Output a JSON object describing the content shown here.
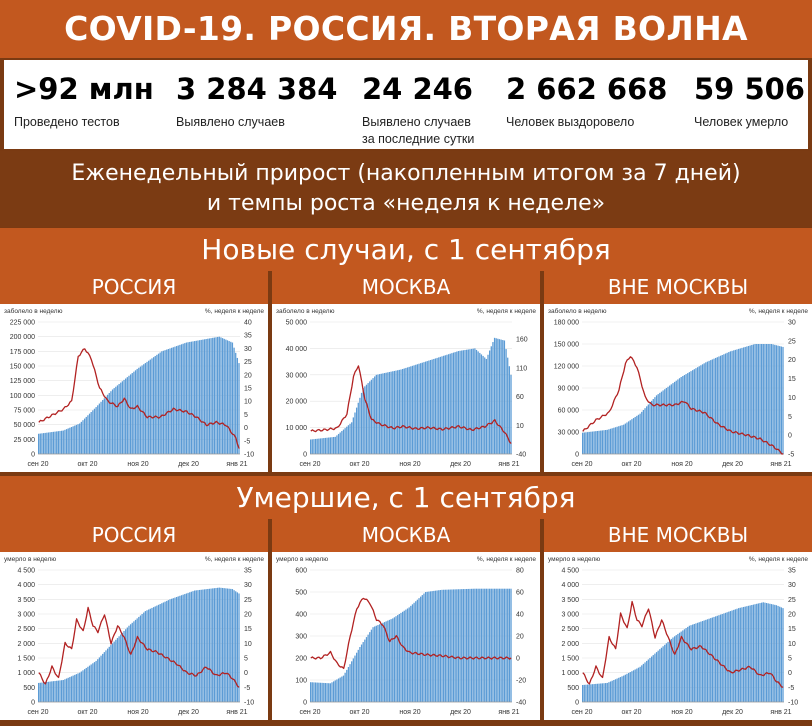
{
  "header": {
    "title": "COVID-19. РОССИЯ. ВТОРАЯ ВОЛНА"
  },
  "stats": [
    {
      "value": ">92 млн",
      "label": "Проведено тестов",
      "color": "#1f3f9b"
    },
    {
      "value": "3 284 384",
      "label": "Выявлено случаев",
      "color": "#ee5a4a"
    },
    {
      "value": "24 246",
      "label": "Выявлено случаев\nза последние сутки",
      "color": "#ee5a4a"
    },
    {
      "value": "2 662 668",
      "label": "Человек выздоровело",
      "color": "#1f3f9b"
    },
    {
      "value": "59 506",
      "label": "Человек умерло",
      "color": "#1f3f9b"
    }
  ],
  "subtitle": {
    "line1": "Еженедельный прирост (накопленным итогом за 7 дней)",
    "line2": "и темпы роста «неделя к неделе»"
  },
  "sections": {
    "cases": "Новые случаи, с 1 сентября",
    "deaths": "Умершие, с 1 сентября"
  },
  "colors": {
    "bars": "#5b9bd5",
    "line": "#b22222"
  },
  "chart_data": [
    {
      "type": "bar",
      "region": "РОССИЯ",
      "left_axis_label": "заболело в неделю",
      "right_axis_label": "%, неделя к неделе",
      "x_tick_labels": [
        "сен 20",
        "окт 20",
        "ноя 20",
        "дек 20",
        "янв 21"
      ],
      "ylim": [
        0,
        225000
      ],
      "y_ticks": [
        0,
        25000,
        50000,
        75000,
        100000,
        125000,
        150000,
        175000,
        200000,
        225000
      ],
      "y_tick_labels": [
        "0",
        "25 000",
        "50 000",
        "75 000",
        "100 000",
        "125 000",
        "150 000",
        "175 000",
        "200 000",
        "225 000"
      ],
      "y2lim": [
        -10,
        40
      ],
      "y2_ticks": [
        -10,
        -5,
        0,
        5,
        10,
        15,
        20,
        25,
        30,
        35,
        40
      ],
      "bar_anchors": [
        [
          0,
          34500
        ],
        [
          15,
          40000
        ],
        [
          25,
          52000
        ],
        [
          35,
          80000
        ],
        [
          45,
          110000
        ],
        [
          60,
          145000
        ],
        [
          75,
          175000
        ],
        [
          90,
          190000
        ],
        [
          100,
          195000
        ],
        [
          110,
          200000
        ],
        [
          118,
          190000
        ],
        [
          122,
          155000
        ]
      ],
      "line_anchors": [
        [
          0,
          2
        ],
        [
          6,
          4
        ],
        [
          15,
          7
        ],
        [
          20,
          10
        ],
        [
          24,
          27
        ],
        [
          28,
          30
        ],
        [
          32,
          26
        ],
        [
          37,
          15
        ],
        [
          42,
          10
        ],
        [
          48,
          8
        ],
        [
          52,
          11
        ],
        [
          56,
          7
        ],
        [
          60,
          8
        ],
        [
          66,
          4
        ],
        [
          74,
          4
        ],
        [
          82,
          7
        ],
        [
          90,
          6
        ],
        [
          96,
          4
        ],
        [
          102,
          1
        ],
        [
          108,
          2
        ],
        [
          114,
          1
        ],
        [
          120,
          -4
        ],
        [
          122,
          -8
        ]
      ]
    },
    {
      "type": "bar",
      "region": "МОСКВА",
      "left_axis_label": "заболело в неделю",
      "right_axis_label": "%, неделя к неделе",
      "x_tick_labels": [
        "сен 20",
        "окт 20",
        "ноя 20",
        "дек 20",
        "янв 21"
      ],
      "ylim": [
        0,
        50000
      ],
      "y_ticks": [
        0,
        10000,
        20000,
        30000,
        40000,
        50000
      ],
      "y_tick_labels": [
        "0",
        "10 000",
        "20 000",
        "30 000",
        "40 000",
        "50 000"
      ],
      "y2lim": [
        -40,
        190
      ],
      "y2_ticks": [
        -40,
        10,
        60,
        110,
        160
      ],
      "bar_anchors": [
        [
          0,
          5500
        ],
        [
          15,
          6500
        ],
        [
          25,
          12000
        ],
        [
          32,
          25000
        ],
        [
          40,
          30000
        ],
        [
          55,
          32000
        ],
        [
          70,
          35000
        ],
        [
          90,
          39000
        ],
        [
          100,
          40000
        ],
        [
          107,
          36000
        ],
        [
          112,
          44000
        ],
        [
          118,
          43000
        ],
        [
          122,
          30000
        ]
      ],
      "line_anchors": [
        [
          0,
          0
        ],
        [
          8,
          2
        ],
        [
          16,
          5
        ],
        [
          22,
          30
        ],
        [
          26,
          95
        ],
        [
          29,
          115
        ],
        [
          33,
          55
        ],
        [
          37,
          20
        ],
        [
          42,
          12
        ],
        [
          50,
          5
        ],
        [
          56,
          8
        ],
        [
          64,
          4
        ],
        [
          72,
          6
        ],
        [
          80,
          3
        ],
        [
          90,
          8
        ],
        [
          98,
          2
        ],
        [
          106,
          8
        ],
        [
          112,
          18
        ],
        [
          118,
          -2
        ],
        [
          122,
          -22
        ]
      ]
    },
    {
      "type": "bar",
      "region": "ВНЕ МОСКВЫ",
      "left_axis_label": "заболело в неделю",
      "right_axis_label": "%, неделя к неделе",
      "x_tick_labels": [
        "сен 20",
        "окт 20",
        "ноя 20",
        "дек 20",
        "янв 21"
      ],
      "ylim": [
        0,
        180000
      ],
      "y_ticks": [
        0,
        30000,
        60000,
        90000,
        120000,
        150000,
        180000
      ],
      "y_tick_labels": [
        "0",
        "30 000",
        "60 000",
        "90 000",
        "120 000",
        "150 000",
        "180 000"
      ],
      "y2lim": [
        -5,
        30
      ],
      "y2_ticks": [
        -5,
        0,
        5,
        10,
        15,
        20,
        25,
        30
      ],
      "bar_anchors": [
        [
          0,
          29000
        ],
        [
          15,
          33000
        ],
        [
          25,
          40000
        ],
        [
          35,
          55000
        ],
        [
          45,
          80000
        ],
        [
          60,
          105000
        ],
        [
          75,
          125000
        ],
        [
          90,
          140000
        ],
        [
          105,
          150000
        ],
        [
          115,
          150000
        ],
        [
          122,
          146000
        ]
      ],
      "line_anchors": [
        [
          0,
          1
        ],
        [
          8,
          4
        ],
        [
          16,
          6
        ],
        [
          22,
          12
        ],
        [
          26,
          19
        ],
        [
          29,
          21
        ],
        [
          33,
          18
        ],
        [
          38,
          10
        ],
        [
          42,
          8
        ],
        [
          50,
          8
        ],
        [
          56,
          8
        ],
        [
          62,
          9
        ],
        [
          66,
          7
        ],
        [
          74,
          6
        ],
        [
          82,
          3
        ],
        [
          90,
          1
        ],
        [
          100,
          0
        ],
        [
          108,
          -1
        ],
        [
          116,
          -3
        ],
        [
          122,
          -5
        ]
      ]
    },
    {
      "type": "bar",
      "region": "РОССИЯ",
      "left_axis_label": "умерло в неделю",
      "right_axis_label": "%, неделя к неделе",
      "x_tick_labels": [
        "сен 20",
        "окт 20",
        "ноя 20",
        "дек 20",
        "янв 21"
      ],
      "ylim": [
        0,
        4500
      ],
      "y_ticks": [
        0,
        500,
        1000,
        1500,
        2000,
        2500,
        3000,
        3500,
        4000,
        4500
      ],
      "y_tick_labels": [
        "0",
        "500",
        "1 000",
        "1 500",
        "2 000",
        "2 500",
        "3 000",
        "3 500",
        "4 000",
        "4 500"
      ],
      "y2lim": [
        -10,
        35
      ],
      "y2_ticks": [
        -10,
        -5,
        0,
        5,
        10,
        15,
        20,
        25,
        30,
        35
      ],
      "bar_anchors": [
        [
          0,
          650
        ],
        [
          15,
          750
        ],
        [
          25,
          1000
        ],
        [
          35,
          1400
        ],
        [
          45,
          2000
        ],
        [
          55,
          2600
        ],
        [
          65,
          3100
        ],
        [
          80,
          3500
        ],
        [
          95,
          3800
        ],
        [
          110,
          3900
        ],
        [
          118,
          3850
        ],
        [
          122,
          3700
        ]
      ],
      "line_anchors": [
        [
          0,
          0
        ],
        [
          4,
          -4
        ],
        [
          8,
          2
        ],
        [
          12,
          -2
        ],
        [
          16,
          10
        ],
        [
          20,
          8
        ],
        [
          23,
          18
        ],
        [
          27,
          14
        ],
        [
          30,
          22
        ],
        [
          33,
          16
        ],
        [
          36,
          14
        ],
        [
          40,
          20
        ],
        [
          44,
          10
        ],
        [
          48,
          16
        ],
        [
          52,
          12
        ],
        [
          56,
          6
        ],
        [
          60,
          12
        ],
        [
          66,
          8
        ],
        [
          72,
          7
        ],
        [
          78,
          5
        ],
        [
          84,
          3
        ],
        [
          90,
          0
        ],
        [
          96,
          -1
        ],
        [
          102,
          2
        ],
        [
          108,
          -1
        ],
        [
          114,
          0
        ],
        [
          118,
          -2
        ],
        [
          122,
          -5
        ]
      ]
    },
    {
      "type": "bar",
      "region": "МОСКВА",
      "left_axis_label": "умерло в неделю",
      "right_axis_label": "%, неделя к неделе",
      "x_tick_labels": [
        "сен 20",
        "окт 20",
        "ноя 20",
        "дек 20",
        "янв 21"
      ],
      "ylim": [
        0,
        600
      ],
      "y_ticks": [
        0,
        100,
        200,
        300,
        400,
        500,
        600
      ],
      "y_tick_labels": [
        "0",
        "100",
        "200",
        "300",
        "400",
        "500",
        "600"
      ],
      "y2lim": [
        -40,
        80
      ],
      "y2_ticks": [
        -40,
        -20,
        0,
        20,
        40,
        60,
        80
      ],
      "bar_anchors": [
        [
          0,
          90
        ],
        [
          12,
          85
        ],
        [
          20,
          120
        ],
        [
          30,
          250
        ],
        [
          38,
          340
        ],
        [
          50,
          380
        ],
        [
          60,
          430
        ],
        [
          70,
          500
        ],
        [
          80,
          510
        ],
        [
          100,
          515
        ],
        [
          122,
          515
        ]
      ],
      "line_anchors": [
        [
          0,
          0
        ],
        [
          6,
          0
        ],
        [
          12,
          5
        ],
        [
          16,
          -5
        ],
        [
          20,
          -10
        ],
        [
          24,
          20
        ],
        [
          28,
          45
        ],
        [
          32,
          55
        ],
        [
          36,
          50
        ],
        [
          40,
          35
        ],
        [
          44,
          30
        ],
        [
          48,
          15
        ],
        [
          52,
          20
        ],
        [
          56,
          10
        ],
        [
          60,
          5
        ],
        [
          70,
          3
        ],
        [
          80,
          2
        ],
        [
          90,
          0
        ],
        [
          100,
          0
        ],
        [
          110,
          0
        ],
        [
          122,
          0
        ]
      ]
    },
    {
      "type": "bar",
      "region": "ВНЕ МОСКВЫ",
      "left_axis_label": "умерло в неделю",
      "right_axis_label": "%, неделя к неделе",
      "x_tick_labels": [
        "сен 20",
        "окт 20",
        "ноя 20",
        "дек 20",
        "янв 21"
      ],
      "ylim": [
        0,
        4500
      ],
      "y_ticks": [
        0,
        500,
        1000,
        1500,
        2000,
        2500,
        3000,
        3500,
        4000,
        4500
      ],
      "y_tick_labels": [
        "0",
        "500",
        "1 000",
        "1 500",
        "2 000",
        "2 500",
        "3 000",
        "3 500",
        "4 000",
        "4 500"
      ],
      "y2lim": [
        -10,
        35
      ],
      "y2_ticks": [
        -10,
        -5,
        0,
        5,
        10,
        15,
        20,
        25,
        30,
        35
      ],
      "bar_anchors": [
        [
          0,
          580
        ],
        [
          15,
          650
        ],
        [
          25,
          900
        ],
        [
          35,
          1200
        ],
        [
          45,
          1700
        ],
        [
          55,
          2200
        ],
        [
          65,
          2600
        ],
        [
          80,
          2900
        ],
        [
          95,
          3200
        ],
        [
          110,
          3400
        ],
        [
          118,
          3300
        ],
        [
          122,
          3200
        ]
      ],
      "line_anchors": [
        [
          0,
          0
        ],
        [
          4,
          -4
        ],
        [
          8,
          2
        ],
        [
          12,
          -2
        ],
        [
          16,
          12
        ],
        [
          20,
          8
        ],
        [
          23,
          20
        ],
        [
          27,
          15
        ],
        [
          30,
          24
        ],
        [
          33,
          18
        ],
        [
          36,
          16
        ],
        [
          40,
          22
        ],
        [
          44,
          12
        ],
        [
          48,
          18
        ],
        [
          52,
          12
        ],
        [
          56,
          6
        ],
        [
          60,
          12
        ],
        [
          66,
          8
        ],
        [
          72,
          9
        ],
        [
          78,
          6
        ],
        [
          84,
          3
        ],
        [
          90,
          0
        ],
        [
          96,
          1
        ],
        [
          102,
          2
        ],
        [
          108,
          -1
        ],
        [
          114,
          0
        ],
        [
          118,
          -3
        ],
        [
          122,
          -5
        ]
      ]
    }
  ]
}
